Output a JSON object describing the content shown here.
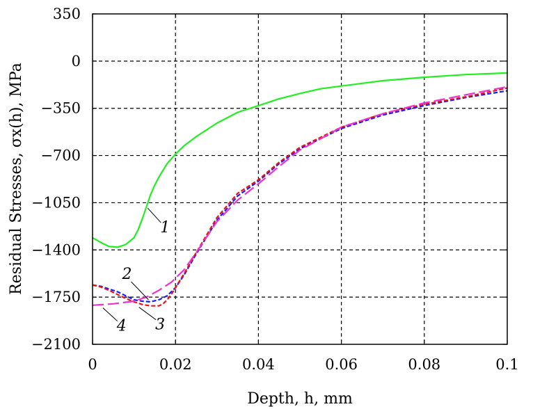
{
  "chart_data": {
    "type": "line",
    "xlabel": "Depth, h, mm",
    "ylabel": "Residual Stresses, σx(h), MPa",
    "xlim": [
      0,
      0.1
    ],
    "ylim": [
      -2100,
      350
    ],
    "xticks": [
      0,
      0.02,
      0.04,
      0.06,
      0.08,
      0.1
    ],
    "xtick_labels": [
      "0",
      "0.02",
      "0.04",
      "0.06",
      "0.08",
      "0.1"
    ],
    "yticks": [
      350,
      0,
      -350,
      -700,
      -1050,
      -1400,
      -1750,
      -2100
    ],
    "ytick_labels": [
      "350",
      "0",
      "−350",
      "−700",
      "−1050",
      "−1400",
      "−1750",
      "−2100"
    ],
    "grid": true,
    "series": [
      {
        "name": "1",
        "color": "#22ee22",
        "dash": "solid",
        "x": [
          0,
          0.002,
          0.004,
          0.006,
          0.008,
          0.01,
          0.011,
          0.012,
          0.013,
          0.014,
          0.015,
          0.016,
          0.018,
          0.02,
          0.022,
          0.025,
          0.03,
          0.035,
          0.04,
          0.045,
          0.05,
          0.055,
          0.06,
          0.07,
          0.08,
          0.09,
          0.1
        ],
        "y": [
          -1310,
          -1345,
          -1375,
          -1380,
          -1360,
          -1310,
          -1250,
          -1170,
          -1080,
          -990,
          -920,
          -860,
          -760,
          -690,
          -630,
          -560,
          -460,
          -380,
          -330,
          -280,
          -240,
          -205,
          -185,
          -145,
          -120,
          -100,
          -88
        ]
      },
      {
        "name": "2",
        "color": "#1a1aff",
        "dash": "short",
        "x": [
          0,
          0.002,
          0.004,
          0.006,
          0.008,
          0.01,
          0.012,
          0.014,
          0.016,
          0.018,
          0.02,
          0.022,
          0.025,
          0.03,
          0.035,
          0.04,
          0.045,
          0.05,
          0.06,
          0.07,
          0.08,
          0.09,
          0.1
        ],
        "y": [
          -1660,
          -1670,
          -1690,
          -1710,
          -1740,
          -1770,
          -1780,
          -1785,
          -1770,
          -1740,
          -1680,
          -1590,
          -1430,
          -1180,
          -1000,
          -890,
          -760,
          -650,
          -500,
          -400,
          -330,
          -270,
          -220
        ]
      },
      {
        "name": "3",
        "color": "#ee1111",
        "dash": "short",
        "x": [
          0,
          0.002,
          0.004,
          0.006,
          0.008,
          0.01,
          0.012,
          0.014,
          0.016,
          0.017,
          0.018,
          0.019,
          0.02,
          0.022,
          0.025,
          0.03,
          0.035,
          0.04,
          0.045,
          0.05,
          0.06,
          0.07,
          0.08,
          0.09,
          0.1
        ],
        "y": [
          -1660,
          -1675,
          -1700,
          -1730,
          -1760,
          -1785,
          -1805,
          -1815,
          -1815,
          -1800,
          -1770,
          -1730,
          -1680,
          -1580,
          -1420,
          -1160,
          -980,
          -880,
          -750,
          -640,
          -490,
          -390,
          -320,
          -265,
          -200
        ]
      },
      {
        "name": "4",
        "color": "#ee33cc",
        "dash": "long",
        "x": [
          0,
          0.005,
          0.01,
          0.013,
          0.016,
          0.019,
          0.022,
          0.025,
          0.03,
          0.035,
          0.04,
          0.045,
          0.05,
          0.06,
          0.07,
          0.08,
          0.09,
          0.1
        ],
        "y": [
          -1810,
          -1800,
          -1780,
          -1750,
          -1700,
          -1640,
          -1550,
          -1420,
          -1190,
          -1030,
          -910,
          -780,
          -660,
          -490,
          -390,
          -310,
          -250,
          -190
        ]
      }
    ],
    "curve_labels": [
      {
        "text": "1",
        "at": [
          0.0175,
          -1270
        ],
        "tip": [
          0.0133,
          -1090
        ]
      },
      {
        "text": "2",
        "at": [
          0.0083,
          -1615
        ],
        "tip": [
          0.0135,
          -1770
        ]
      },
      {
        "text": "3",
        "at": [
          0.0163,
          -1990
        ],
        "tip": [
          0.0112,
          -1825
        ]
      },
      {
        "text": "4",
        "at": [
          0.007,
          -2000
        ],
        "tip": [
          0.0025,
          -1830
        ]
      }
    ]
  }
}
